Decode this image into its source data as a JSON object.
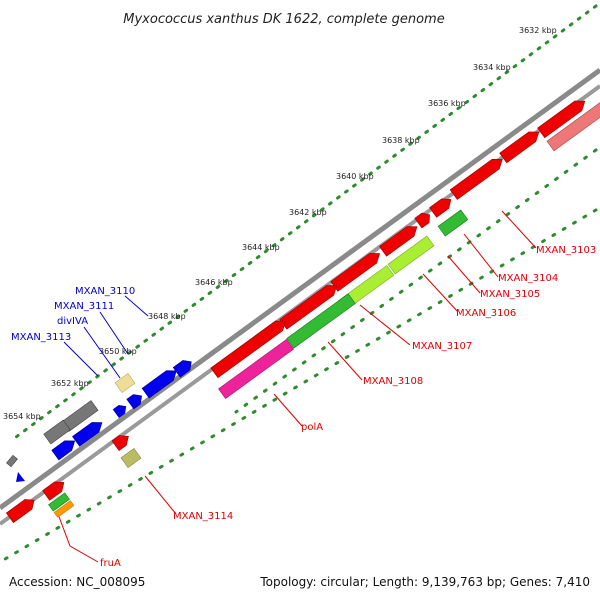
{
  "title": "Myxococcus xanthus DK 1622, complete genome",
  "footer": {
    "accession": "Accession: NC_008095",
    "summary": "Topology: circular; Length: 9,139,763 bp; Genes: 7,410"
  },
  "ruler": {
    "ticks": [
      "3632 kbp",
      "3634 kbp",
      "3636 kbp",
      "3638 kbp",
      "3640 kbp",
      "3642 kbp",
      "3644 kbp",
      "3646 kbp",
      "3648 kbp",
      "3650 kbp",
      "3652 kbp",
      "3654 kbp"
    ]
  },
  "labels": {
    "above": [
      "MXAN_3110",
      "MXAN_3111",
      "divIVA",
      "MXAN_3113"
    ],
    "below": [
      "MXAN_3103",
      "MXAN_3104",
      "MXAN_3105",
      "MXAN_3106",
      "MXAN_3107",
      "MXAN_3108",
      "polA",
      "MXAN_3114",
      "fruA"
    ]
  },
  "colors": {
    "backbone": "#8a8a8a",
    "dots": "#2e8b2e",
    "red": "#ee0000",
    "pink_red": "#ee7777",
    "green": "#33bb33",
    "lime": "#aaee33",
    "magenta": "#ee2299",
    "blue": "#0000ee",
    "gray": "#777777",
    "khaki_light": "#eedd99",
    "khaki": "#bbbb66",
    "orange": "#ff9900",
    "label_red": "#dd0000",
    "label_blue": "#0000cc"
  }
}
